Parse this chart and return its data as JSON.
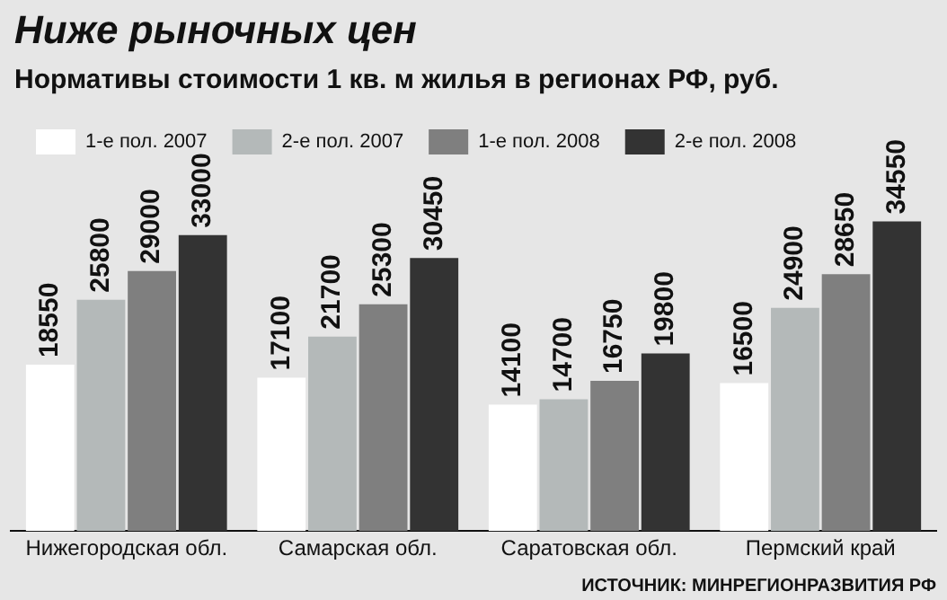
{
  "chart_data": {
    "type": "bar",
    "title": "Ниже рыночных цен",
    "subtitle": "Нормативы стоимости 1 кв. м  жилья в регионах РФ, руб.",
    "categories": [
      "Нижегородская обл.",
      "Самарская обл.",
      "Саратовская обл.",
      "Пермский край"
    ],
    "series": [
      {
        "name": "1-е пол. 2007",
        "color": "#ffffff",
        "values": [
          18550,
          17100,
          14100,
          16500
        ]
      },
      {
        "name": "2-е пол. 2007",
        "color": "#b4b9b9",
        "values": [
          25800,
          21700,
          14700,
          24900
        ]
      },
      {
        "name": "1-е пол. 2008",
        "color": "#7f7f7f",
        "values": [
          29000,
          25300,
          16750,
          28650
        ]
      },
      {
        "name": "2-е пол. 2008",
        "color": "#333333",
        "values": [
          33000,
          30450,
          19800,
          34550
        ]
      }
    ],
    "data_labels": true,
    "legend": "top",
    "grid": false,
    "annotations": [
      "ИСТОЧНИК: МИНРЕГИОНРАЗВИТИЯ РФ"
    ]
  }
}
